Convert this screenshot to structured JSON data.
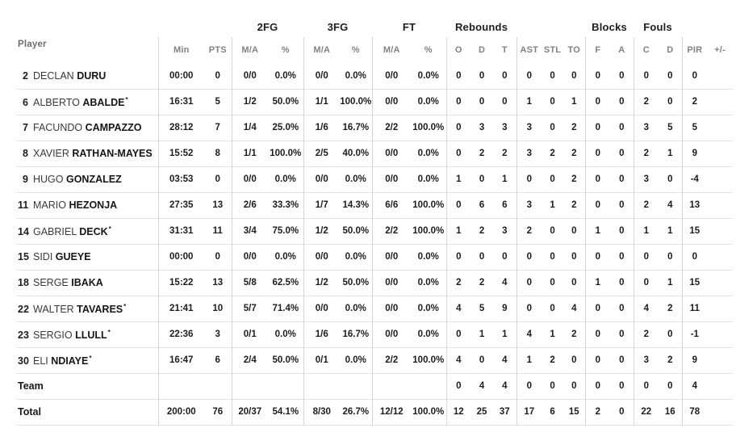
{
  "table": {
    "player_header": "Player",
    "group_headers": [
      "2FG",
      "3FG",
      "FT",
      "Rebounds",
      "Blocks",
      "Fouls"
    ],
    "col_headers": [
      "Min",
      "PTS",
      "M/A",
      "%",
      "M/A",
      "%",
      "M/A",
      "%",
      "O",
      "D",
      "T",
      "AST",
      "STL",
      "TO",
      "F",
      "A",
      "C",
      "D",
      "PIR",
      "+/-"
    ],
    "starter_mark": "*",
    "rows": [
      {
        "type": "player",
        "num": "2",
        "first": "DECLAN",
        "last": "DURU",
        "starter": false,
        "min": "00:00",
        "pts": "0",
        "fg2_ma": "0/0",
        "fg2_pct": "0.0%",
        "fg3_ma": "0/0",
        "fg3_pct": "0.0%",
        "ft_ma": "0/0",
        "ft_pct": "0.0%",
        "reb_o": "0",
        "reb_d": "0",
        "reb_t": "0",
        "ast": "0",
        "stl": "0",
        "to": "0",
        "blk_f": "0",
        "blk_a": "0",
        "foul_c": "0",
        "foul_d": "0",
        "pir": "0",
        "plus_minus": ""
      },
      {
        "type": "player",
        "num": "6",
        "first": "ALBERTO",
        "last": "ABALDE",
        "starter": true,
        "min": "16:31",
        "pts": "5",
        "fg2_ma": "1/2",
        "fg2_pct": "50.0%",
        "fg3_ma": "1/1",
        "fg3_pct": "100.0%",
        "ft_ma": "0/0",
        "ft_pct": "0.0%",
        "reb_o": "0",
        "reb_d": "0",
        "reb_t": "0",
        "ast": "1",
        "stl": "0",
        "to": "1",
        "blk_f": "0",
        "blk_a": "0",
        "foul_c": "2",
        "foul_d": "0",
        "pir": "2",
        "plus_minus": ""
      },
      {
        "type": "player",
        "num": "7",
        "first": "FACUNDO",
        "last": "CAMPAZZO",
        "starter": false,
        "min": "28:12",
        "pts": "7",
        "fg2_ma": "1/4",
        "fg2_pct": "25.0%",
        "fg3_ma": "1/6",
        "fg3_pct": "16.7%",
        "ft_ma": "2/2",
        "ft_pct": "100.0%",
        "reb_o": "0",
        "reb_d": "3",
        "reb_t": "3",
        "ast": "3",
        "stl": "0",
        "to": "2",
        "blk_f": "0",
        "blk_a": "0",
        "foul_c": "3",
        "foul_d": "5",
        "pir": "5",
        "plus_minus": ""
      },
      {
        "type": "player",
        "num": "8",
        "first": "XAVIER",
        "last": "RATHAN-MAYES",
        "starter": false,
        "min": "15:52",
        "pts": "8",
        "fg2_ma": "1/1",
        "fg2_pct": "100.0%",
        "fg3_ma": "2/5",
        "fg3_pct": "40.0%",
        "ft_ma": "0/0",
        "ft_pct": "0.0%",
        "reb_o": "0",
        "reb_d": "2",
        "reb_t": "2",
        "ast": "3",
        "stl": "2",
        "to": "2",
        "blk_f": "0",
        "blk_a": "0",
        "foul_c": "2",
        "foul_d": "1",
        "pir": "9",
        "plus_minus": ""
      },
      {
        "type": "player",
        "num": "9",
        "first": "HUGO",
        "last": "GONZALEZ",
        "starter": false,
        "min": "03:53",
        "pts": "0",
        "fg2_ma": "0/0",
        "fg2_pct": "0.0%",
        "fg3_ma": "0/0",
        "fg3_pct": "0.0%",
        "ft_ma": "0/0",
        "ft_pct": "0.0%",
        "reb_o": "1",
        "reb_d": "0",
        "reb_t": "1",
        "ast": "0",
        "stl": "0",
        "to": "2",
        "blk_f": "0",
        "blk_a": "0",
        "foul_c": "3",
        "foul_d": "0",
        "pir": "-4",
        "plus_minus": ""
      },
      {
        "type": "player",
        "num": "11",
        "first": "MARIO",
        "last": "HEZONJA",
        "starter": false,
        "min": "27:35",
        "pts": "13",
        "fg2_ma": "2/6",
        "fg2_pct": "33.3%",
        "fg3_ma": "1/7",
        "fg3_pct": "14.3%",
        "ft_ma": "6/6",
        "ft_pct": "100.0%",
        "reb_o": "0",
        "reb_d": "6",
        "reb_t": "6",
        "ast": "3",
        "stl": "1",
        "to": "2",
        "blk_f": "0",
        "blk_a": "0",
        "foul_c": "2",
        "foul_d": "4",
        "pir": "13",
        "plus_minus": ""
      },
      {
        "type": "player",
        "num": "14",
        "first": "GABRIEL",
        "last": "DECK",
        "starter": true,
        "min": "31:31",
        "pts": "11",
        "fg2_ma": "3/4",
        "fg2_pct": "75.0%",
        "fg3_ma": "1/2",
        "fg3_pct": "50.0%",
        "ft_ma": "2/2",
        "ft_pct": "100.0%",
        "reb_o": "1",
        "reb_d": "2",
        "reb_t": "3",
        "ast": "2",
        "stl": "0",
        "to": "0",
        "blk_f": "1",
        "blk_a": "0",
        "foul_c": "1",
        "foul_d": "1",
        "pir": "15",
        "plus_minus": ""
      },
      {
        "type": "player",
        "num": "15",
        "first": "SIDI",
        "last": "GUEYE",
        "starter": false,
        "min": "00:00",
        "pts": "0",
        "fg2_ma": "0/0",
        "fg2_pct": "0.0%",
        "fg3_ma": "0/0",
        "fg3_pct": "0.0%",
        "ft_ma": "0/0",
        "ft_pct": "0.0%",
        "reb_o": "0",
        "reb_d": "0",
        "reb_t": "0",
        "ast": "0",
        "stl": "0",
        "to": "0",
        "blk_f": "0",
        "blk_a": "0",
        "foul_c": "0",
        "foul_d": "0",
        "pir": "0",
        "plus_minus": ""
      },
      {
        "type": "player",
        "num": "18",
        "first": "SERGE",
        "last": "IBAKA",
        "starter": false,
        "min": "15:22",
        "pts": "13",
        "fg2_ma": "5/8",
        "fg2_pct": "62.5%",
        "fg3_ma": "1/2",
        "fg3_pct": "50.0%",
        "ft_ma": "0/0",
        "ft_pct": "0.0%",
        "reb_o": "2",
        "reb_d": "2",
        "reb_t": "4",
        "ast": "0",
        "stl": "0",
        "to": "0",
        "blk_f": "1",
        "blk_a": "0",
        "foul_c": "0",
        "foul_d": "1",
        "pir": "15",
        "plus_minus": ""
      },
      {
        "type": "player",
        "num": "22",
        "first": "WALTER",
        "last": "TAVARES",
        "starter": true,
        "min": "21:41",
        "pts": "10",
        "fg2_ma": "5/7",
        "fg2_pct": "71.4%",
        "fg3_ma": "0/0",
        "fg3_pct": "0.0%",
        "ft_ma": "0/0",
        "ft_pct": "0.0%",
        "reb_o": "4",
        "reb_d": "5",
        "reb_t": "9",
        "ast": "0",
        "stl": "0",
        "to": "4",
        "blk_f": "0",
        "blk_a": "0",
        "foul_c": "4",
        "foul_d": "2",
        "pir": "11",
        "plus_minus": ""
      },
      {
        "type": "player",
        "num": "23",
        "first": "SERGIO",
        "last": "LLULL",
        "starter": true,
        "min": "22:36",
        "pts": "3",
        "fg2_ma": "0/1",
        "fg2_pct": "0.0%",
        "fg3_ma": "1/6",
        "fg3_pct": "16.7%",
        "ft_ma": "0/0",
        "ft_pct": "0.0%",
        "reb_o": "0",
        "reb_d": "1",
        "reb_t": "1",
        "ast": "4",
        "stl": "1",
        "to": "2",
        "blk_f": "0",
        "blk_a": "0",
        "foul_c": "2",
        "foul_d": "0",
        "pir": "-1",
        "plus_minus": ""
      },
      {
        "type": "player",
        "num": "30",
        "first": "ELI",
        "last": "NDIAYE",
        "starter": true,
        "min": "16:47",
        "pts": "6",
        "fg2_ma": "2/4",
        "fg2_pct": "50.0%",
        "fg3_ma": "0/1",
        "fg3_pct": "0.0%",
        "ft_ma": "2/2",
        "ft_pct": "100.0%",
        "reb_o": "4",
        "reb_d": "0",
        "reb_t": "4",
        "ast": "1",
        "stl": "2",
        "to": "0",
        "blk_f": "0",
        "blk_a": "0",
        "foul_c": "3",
        "foul_d": "2",
        "pir": "9",
        "plus_minus": ""
      },
      {
        "type": "team",
        "label": "Team",
        "min": "",
        "pts": "",
        "fg2_ma": "",
        "fg2_pct": "",
        "fg3_ma": "",
        "fg3_pct": "",
        "ft_ma": "",
        "ft_pct": "",
        "reb_o": "0",
        "reb_d": "4",
        "reb_t": "4",
        "ast": "0",
        "stl": "0",
        "to": "0",
        "blk_f": "0",
        "blk_a": "0",
        "foul_c": "0",
        "foul_d": "0",
        "pir": "4",
        "plus_minus": ""
      },
      {
        "type": "total",
        "label": "Total",
        "min": "200:00",
        "pts": "76",
        "fg2_ma": "20/37",
        "fg2_pct": "54.1%",
        "fg3_ma": "8/30",
        "fg3_pct": "26.7%",
        "ft_ma": "12/12",
        "ft_pct": "100.0%",
        "reb_o": "12",
        "reb_d": "25",
        "reb_t": "37",
        "ast": "17",
        "stl": "6",
        "to": "15",
        "blk_f": "2",
        "blk_a": "0",
        "foul_c": "22",
        "foul_d": "16",
        "pir": "78",
        "plus_minus": ""
      }
    ]
  },
  "colors": {
    "text_dark": "#1d1d1d",
    "header_gray": "#828282",
    "row_border": "#e4e4e4",
    "column_border": "#d6d6d6",
    "background": "#ffffff"
  }
}
